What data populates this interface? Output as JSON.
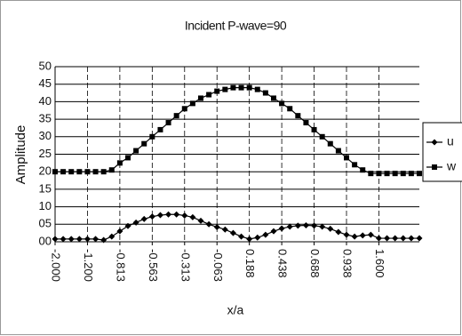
{
  "chart_data": {
    "type": "line",
    "title": "Incident P-wave=90",
    "x_label": "x/a",
    "y_label": "Amplitude",
    "categories": [
      "-2.000",
      null,
      null,
      null,
      "-1.200",
      null,
      null,
      null,
      "-0.813",
      null,
      null,
      null,
      "-0.563",
      null,
      null,
      null,
      "-0.313",
      null,
      null,
      null,
      "-0.063",
      null,
      null,
      null,
      "0.188",
      null,
      null,
      null,
      "0.438",
      null,
      null,
      null,
      "0.688",
      null,
      null,
      null,
      "0.938",
      null,
      null,
      null,
      "1.600",
      null,
      null,
      null,
      null,
      null
    ],
    "series": [
      {
        "name": "u",
        "color": "#000000",
        "marker": "diamond",
        "values": [
          0.8,
          0.8,
          0.8,
          0.8,
          0.8,
          0.8,
          0.5,
          1.5,
          3,
          4.5,
          5.5,
          6.5,
          7.2,
          7.6,
          7.8,
          7.8,
          7.5,
          7,
          6,
          5,
          4.2,
          3.5,
          2.5,
          1.5,
          0.8,
          1.2,
          2,
          3,
          3.8,
          4.3,
          4.6,
          4.7,
          4.6,
          4.3,
          3.7,
          2.8,
          2,
          1.5,
          1.8,
          2,
          1,
          1,
          1,
          1,
          1,
          1
        ]
      },
      {
        "name": "w",
        "color": "#000000",
        "marker": "square",
        "values": [
          20,
          20,
          20,
          20,
          20,
          20,
          20,
          20.5,
          22.5,
          24,
          26,
          28,
          30,
          32,
          34,
          36,
          38,
          39.5,
          41,
          42,
          43,
          43.5,
          44,
          44,
          44,
          43.5,
          42.5,
          41,
          39.5,
          38,
          36,
          34,
          32,
          30,
          28,
          26,
          24,
          22,
          20.5,
          19.5,
          19.5,
          19.5,
          19.5,
          19.5,
          19.5,
          19.5
        ]
      }
    ],
    "ylim": [
      0,
      50
    ],
    "yticks": [
      {
        "value": 0,
        "label": "00"
      },
      {
        "value": 5,
        "label": "05"
      },
      10,
      15,
      20,
      25,
      30,
      35,
      40,
      45,
      50
    ],
    "grid": true,
    "legend": "right"
  }
}
